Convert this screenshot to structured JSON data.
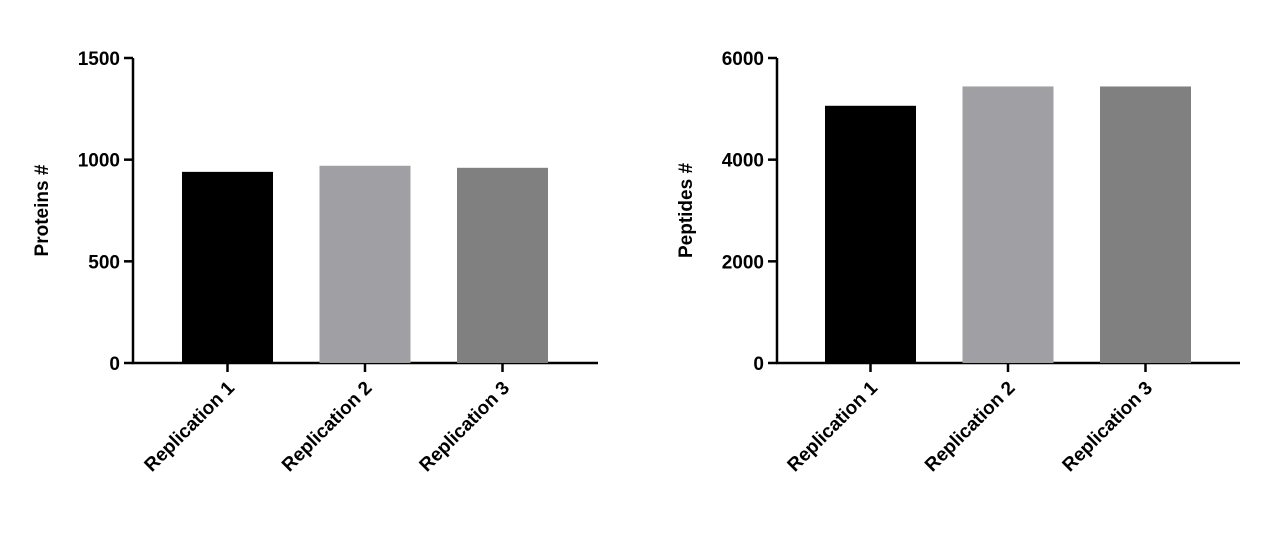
{
  "chart_data": [
    {
      "type": "bar",
      "y_label": "Proteins #",
      "categories": [
        "Replication 1",
        "Replication 2",
        "Replication 3"
      ],
      "values": [
        940,
        970,
        960
      ],
      "colors": [
        "#000000",
        "#a0a0a4",
        "#808080"
      ],
      "ylim": [
        0,
        1500
      ],
      "yticks": [
        0,
        500,
        1000,
        1500
      ]
    },
    {
      "type": "bar",
      "y_label": "Peptides #",
      "categories": [
        "Replication 1",
        "Replication 2",
        "Replication 3"
      ],
      "values": [
        5060,
        5440,
        5440
      ],
      "colors": [
        "#000000",
        "#a0a0a4",
        "#808080"
      ],
      "ylim": [
        0,
        6000
      ],
      "yticks": [
        0,
        2000,
        4000,
        6000
      ]
    }
  ]
}
